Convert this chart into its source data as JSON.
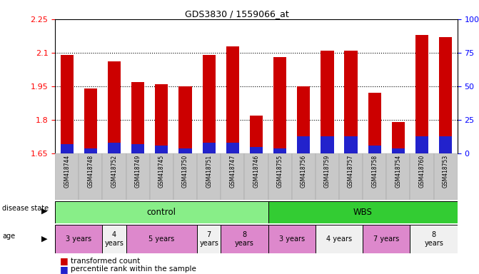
{
  "title": "GDS3830 / 1559066_at",
  "samples": [
    "GSM418744",
    "GSM418748",
    "GSM418752",
    "GSM418749",
    "GSM418745",
    "GSM418750",
    "GSM418751",
    "GSM418747",
    "GSM418746",
    "GSM418755",
    "GSM418756",
    "GSM418759",
    "GSM418757",
    "GSM418758",
    "GSM418754",
    "GSM418760",
    "GSM418753"
  ],
  "transformed_count": [
    2.09,
    1.94,
    2.06,
    1.97,
    1.96,
    1.95,
    2.09,
    2.13,
    1.82,
    2.08,
    1.95,
    2.11,
    2.11,
    1.92,
    1.79,
    2.18,
    2.17
  ],
  "percentile_rank": [
    7,
    4,
    8,
    7,
    6,
    4,
    8,
    8,
    5,
    4,
    13,
    13,
    13,
    6,
    4,
    13,
    13
  ],
  "ylim_left": [
    1.65,
    2.25
  ],
  "ylim_right": [
    0,
    100
  ],
  "yticks_left": [
    1.65,
    1.8,
    1.95,
    2.1,
    2.25
  ],
  "yticks_right": [
    0,
    25,
    50,
    75,
    100
  ],
  "bar_color": "#cc0000",
  "blue_color": "#2222cc",
  "background_color": "#ffffff",
  "label_area_color": "#c8c8c8",
  "disease_state_control_color": "#88ee88",
  "disease_state_wbs_color": "#33cc33",
  "age_pink_color": "#dd88cc",
  "age_white_color": "#f0f0f0",
  "n_control": 9,
  "age_groups_control": [
    {
      "label": "3 years",
      "start": 0,
      "end": 2,
      "color": "#dd88cc"
    },
    {
      "label": "4\nyears",
      "start": 2,
      "end": 3,
      "color": "#f0f0f0"
    },
    {
      "label": "5 years",
      "start": 3,
      "end": 6,
      "color": "#dd88cc"
    },
    {
      "label": "7\nyears",
      "start": 6,
      "end": 7,
      "color": "#f0f0f0"
    },
    {
      "label": "8\nyears",
      "start": 7,
      "end": 9,
      "color": "#dd88cc"
    }
  ],
  "age_groups_wbs": [
    {
      "label": "3 years",
      "start": 9,
      "end": 11,
      "color": "#dd88cc"
    },
    {
      "label": "4 years",
      "start": 11,
      "end": 13,
      "color": "#f0f0f0"
    },
    {
      "label": "7 years",
      "start": 13,
      "end": 15,
      "color": "#dd88cc"
    },
    {
      "label": "8\nyears",
      "start": 15,
      "end": 17,
      "color": "#f0f0f0"
    }
  ],
  "base_value": 1.65,
  "bar_width": 0.55,
  "label_fontsize": 5.5,
  "tick_fontsize": 8
}
